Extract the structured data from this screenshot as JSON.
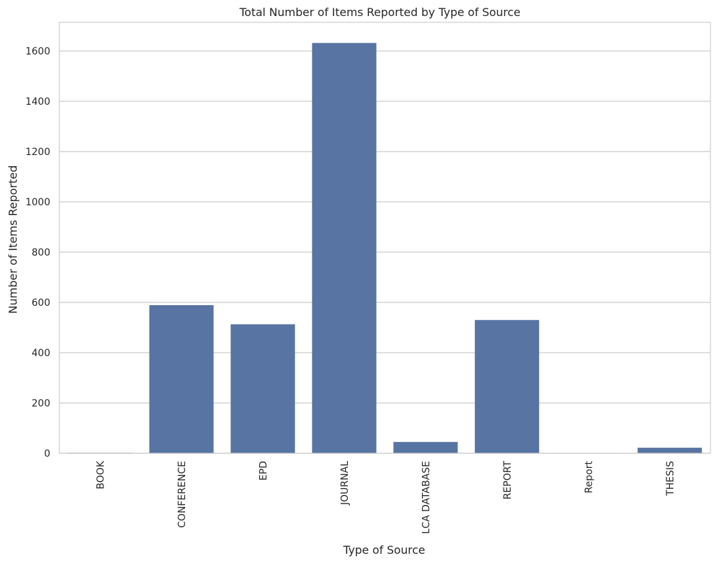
{
  "chart_data": {
    "type": "bar",
    "title": "Total Number of Items Reported by Type of Source",
    "xlabel": "Type of Source",
    "ylabel": "Number of Items Reported",
    "categories": [
      "BOOK",
      "CONFERENCE",
      "EPD",
      "JOURNAL",
      "LCA DATABASE",
      "REPORT",
      "Report",
      "THESIS"
    ],
    "values": [
      2,
      589,
      513,
      1632,
      45,
      530,
      1,
      22
    ],
    "ylim": [
      0,
      1714
    ],
    "yticks": [
      0,
      200,
      400,
      600,
      800,
      1000,
      1200,
      1400,
      1600
    ],
    "ytick_labels": [
      "0",
      "200",
      "400",
      "600",
      "800",
      "1000",
      "1200",
      "1400",
      "1600"
    ],
    "grid": "horizontal",
    "bar_color": "#5874a3",
    "grid_color": "#cccccc"
  }
}
